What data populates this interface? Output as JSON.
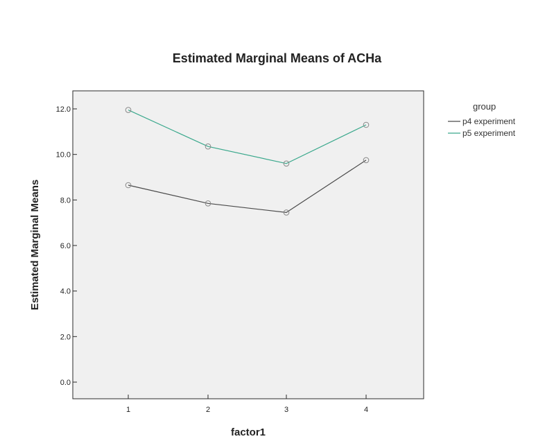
{
  "chart_data": {
    "type": "line",
    "title": "Estimated Marginal Means of ACHa",
    "xlabel": "factor1",
    "ylabel": "Estimated Marginal Means",
    "categories": [
      "1",
      "2",
      "3",
      "4"
    ],
    "ylim": [
      0.0,
      12.0
    ],
    "yticks": [
      "0.0",
      "2.0",
      "4.0",
      "6.0",
      "8.0",
      "10.0",
      "12.0"
    ],
    "grid": false,
    "legend": {
      "title": "group",
      "position": "right"
    },
    "series": [
      {
        "name": "p4 experiment",
        "values": [
          8.65,
          7.85,
          7.45,
          9.75
        ],
        "color": "#4a4a4a"
      },
      {
        "name": "p5 experiment",
        "values": [
          11.95,
          10.35,
          9.6,
          11.3
        ],
        "color": "#3aa88c"
      }
    ]
  },
  "colors": {
    "plot_background": "#f0f0f0",
    "frame": "#2a2a2a"
  }
}
